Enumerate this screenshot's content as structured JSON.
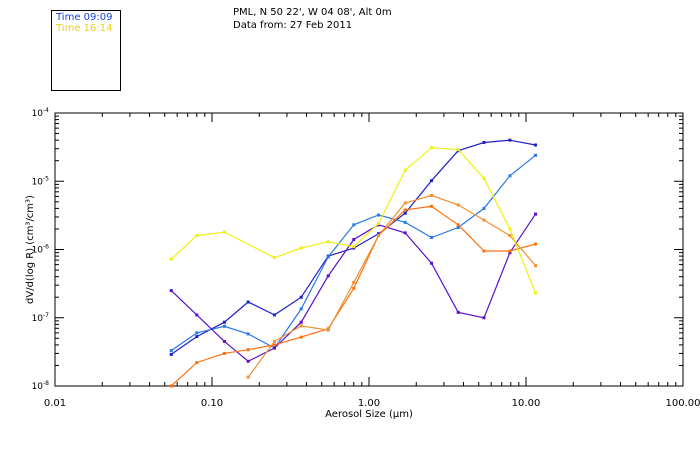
{
  "header": {
    "location": "PML, N 50 22', W 04 08', Alt 0m",
    "date": "Data from: 27 Feb 2011"
  },
  "legend": {
    "items": [
      {
        "label": "Time 09:09",
        "color": "#1a3ee6"
      },
      {
        "label": "Time 16:14",
        "color": "#e6d21a"
      }
    ]
  },
  "chart_data": {
    "type": "line",
    "xscale": "log",
    "yscale": "log",
    "xlim": [
      0.01,
      100
    ],
    "ylim": [
      1e-08,
      0.0001
    ],
    "xlabel": "Aerosol Size (µm)",
    "ylabel": "dV/d(log R) (cm³/cm³)",
    "x_ticks": [
      {
        "value": 0.01,
        "label": "0.01"
      },
      {
        "value": 0.1,
        "label": "0.10"
      },
      {
        "value": 1,
        "label": "1.00"
      },
      {
        "value": 10,
        "label": "10.00"
      },
      {
        "value": 100,
        "label": "100.00"
      }
    ],
    "y_ticks": [
      {
        "value": 1e-08,
        "base": "10",
        "exp": "-8"
      },
      {
        "value": 1e-07,
        "base": "10",
        "exp": "-7"
      },
      {
        "value": 1e-06,
        "base": "10",
        "exp": "-6"
      },
      {
        "value": 1e-05,
        "base": "10",
        "exp": "-5"
      },
      {
        "value": 0.0001,
        "base": "10",
        "exp": "-4"
      }
    ],
    "series": [
      {
        "color": "#2020c8",
        "x": [
          0.055,
          0.08,
          0.12,
          0.17,
          0.25,
          0.37,
          0.55,
          0.8,
          1.15,
          1.7,
          2.5,
          3.7,
          5.4,
          7.9,
          11.5
        ],
        "y": [
          2.9e-08,
          5.3e-08,
          8.6e-08,
          1.7e-07,
          1.1e-07,
          2e-07,
          8e-07,
          1.05e-06,
          1.7e-06,
          3.4e-06,
          1.02e-05,
          2.8e-05,
          3.7e-05,
          4e-05,
          3.4e-05
        ]
      },
      {
        "color": "#2878e6",
        "x": [
          0.055,
          0.08,
          0.12,
          0.17,
          0.25,
          0.37,
          0.55,
          0.8,
          1.15,
          1.7,
          2.5,
          3.7,
          5.4,
          7.9,
          11.5
        ],
        "y": [
          3.3e-08,
          6e-08,
          7.5e-08,
          5.8e-08,
          3.6e-08,
          1.35e-07,
          7.8e-07,
          2.3e-06,
          3.2e-06,
          2.5e-06,
          1.5e-06,
          2.1e-06,
          4e-06,
          1.2e-05,
          2.4e-05
        ]
      },
      {
        "color": "#5a10c8",
        "x": [
          0.055,
          0.08,
          0.12,
          0.17,
          0.25,
          0.37,
          0.55,
          0.8,
          1.15,
          1.7,
          2.5,
          3.7,
          5.4,
          7.9,
          11.5
        ],
        "y": [
          2.5e-07,
          1.1e-07,
          4.5e-08,
          2.3e-08,
          3.6e-08,
          8.6e-08,
          4.1e-07,
          1.4e-06,
          2.3e-06,
          1.75e-06,
          6.3e-07,
          1.2e-07,
          1e-07,
          9e-07,
          3.3e-06
        ]
      },
      {
        "color": "#ff7010",
        "x": [
          0.055,
          0.08,
          0.12,
          0.17,
          0.25,
          0.37,
          0.55,
          0.8,
          1.15,
          1.7,
          2.5,
          3.7,
          5.4,
          7.9,
          11.5
        ],
        "y": [
          1e-08,
          2.2e-08,
          3e-08,
          3.4e-08,
          4e-08,
          5.2e-08,
          6.9e-08,
          2.7e-07,
          1.6e-06,
          3.8e-06,
          4.3e-06,
          2.3e-06,
          9.5e-07,
          9.5e-07,
          1.2e-06
        ]
      },
      {
        "color": "#f09030",
        "x": [
          0.17,
          0.25,
          0.37,
          0.55,
          0.8,
          1.15,
          1.7,
          2.5,
          3.7,
          5.4,
          7.9,
          11.5
        ],
        "y": [
          1.35e-08,
          4.5e-08,
          7.6e-08,
          6.6e-08,
          3.3e-07,
          1.6e-06,
          4.8e-06,
          6.2e-06,
          4.5e-06,
          2.7e-06,
          1.6e-06,
          5.8e-07
        ]
      },
      {
        "color": "#f0f010",
        "x": [
          0.055,
          0.08,
          0.12,
          0.25,
          0.37,
          0.55,
          0.8,
          1.15,
          1.7,
          2.5,
          3.7,
          5.4,
          7.9,
          11.5
        ],
        "y": [
          7.2e-07,
          1.6e-06,
          1.8e-06,
          7.6e-07,
          1.05e-06,
          1.3e-06,
          1.1e-06,
          2.4e-06,
          1.45e-05,
          3.1e-05,
          2.9e-05,
          1.1e-05,
          2e-06,
          2.3e-07
        ]
      }
    ]
  }
}
